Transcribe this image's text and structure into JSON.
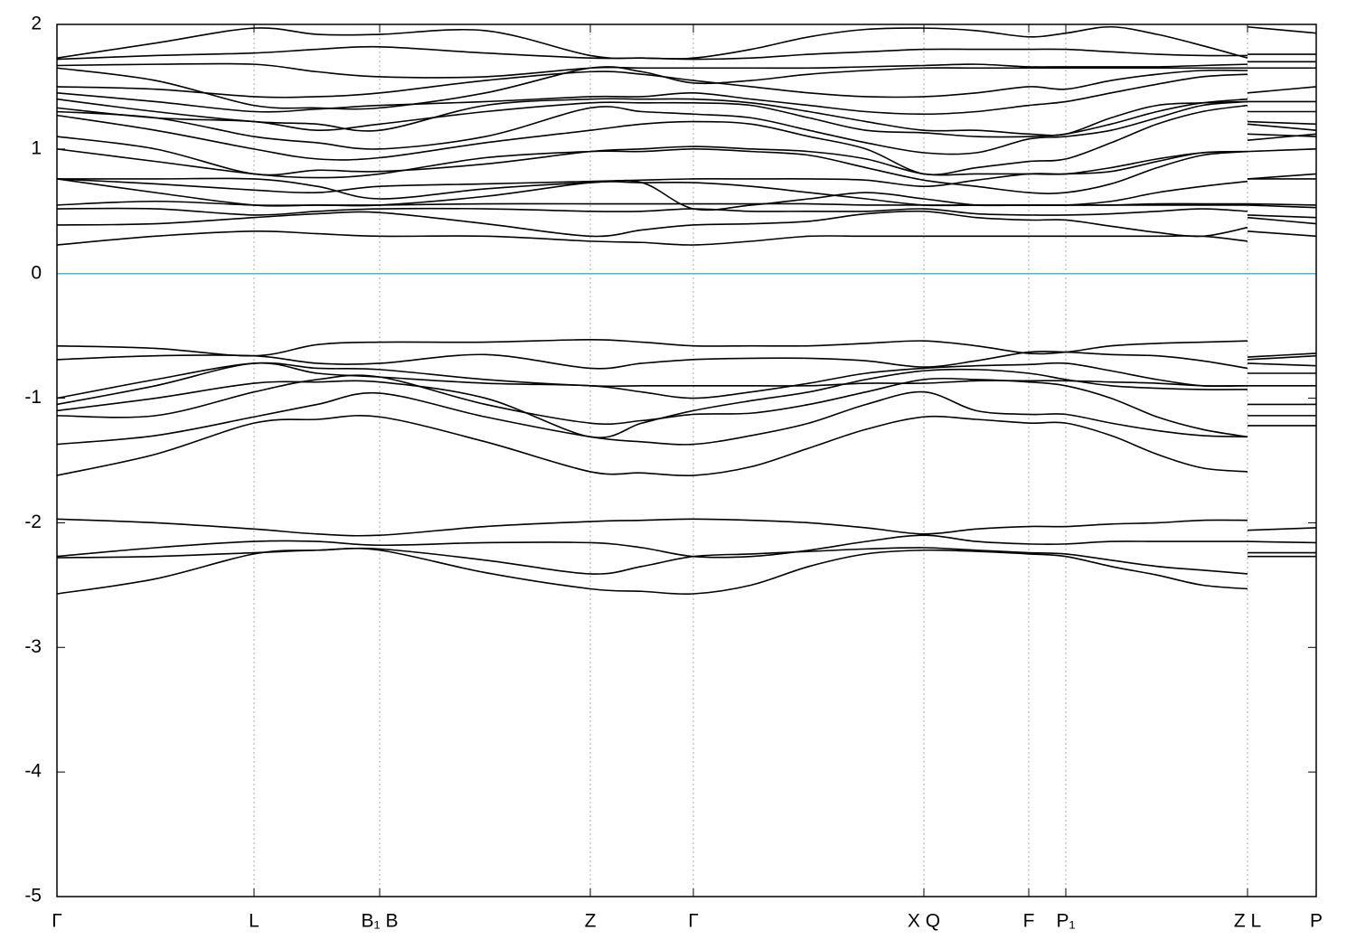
{
  "chart_data": {
    "type": "line",
    "color": "#000000",
    "zero_line_color": "#5aaec6",
    "grid": true,
    "xlim": [
      0,
      13.93
    ],
    "xticks": [
      {
        "value": 0,
        "label": "Γ"
      },
      {
        "value": 2.18,
        "label": "L"
      },
      {
        "value": 3.57,
        "label": "B₁ B"
      },
      {
        "value": 5.9,
        "label": "Z"
      },
      {
        "value": 7.04,
        "label": "Γ"
      },
      {
        "value": 9.59,
        "label": "X Q"
      },
      {
        "value": 10.75,
        "label": "F"
      },
      {
        "value": 11.16,
        "label": "P₁"
      },
      {
        "value": 13.17,
        "label": "Z L"
      },
      {
        "value": 13.93,
        "label": "P"
      }
    ],
    "ylim": [
      -5,
      2
    ],
    "yticks": [
      2,
      1,
      0,
      -1,
      -2,
      -3,
      -4,
      -5
    ],
    "x": [
      0,
      1.09,
      2.18,
      2.88,
      3.57,
      4.74,
      5.9,
      6.47,
      7.04,
      7.68,
      8.32,
      8.95,
      9.59,
      10.17,
      10.75,
      11.16,
      11.66,
      12.17,
      12.67,
      13.17,
      13.17,
      13.17,
      13.93
    ],
    "series": [
      {
        "values": [
          -2.57,
          -2.45,
          -2.25,
          -2.22,
          -2.22,
          -2.4,
          -2.53,
          -2.55,
          -2.57,
          -2.5,
          -2.35,
          -2.25,
          -2.22,
          -2.23,
          -2.25,
          -2.27,
          -2.35,
          -2.42,
          -2.5,
          -2.53,
          null,
          -2.27,
          -2.27
        ]
      },
      {
        "values": [
          -2.28,
          -2.27,
          -2.24,
          -2.22,
          -2.21,
          -2.3,
          -2.41,
          -2.35,
          -2.27,
          -2.25,
          -2.23,
          -2.21,
          -2.2,
          -2.22,
          -2.24,
          -2.25,
          -2.3,
          -2.35,
          -2.38,
          -2.41,
          null,
          -2.24,
          -2.24
        ]
      },
      {
        "values": [
          -2.27,
          -2.2,
          -2.15,
          -2.15,
          -2.18,
          -2.16,
          -2.16,
          -2.2,
          -2.27,
          -2.27,
          -2.22,
          -2.15,
          -2.1,
          -2.15,
          -2.17,
          -2.17,
          -2.15,
          -2.15,
          -2.15,
          -2.15,
          null,
          -2.15,
          -2.16
        ]
      },
      {
        "values": [
          -1.97,
          -2.0,
          -2.05,
          -2.09,
          -2.1,
          -2.03,
          -1.99,
          -1.98,
          -1.97,
          -1.98,
          -2.0,
          -2.04,
          -2.09,
          -2.05,
          -2.03,
          -2.03,
          -2.01,
          -2.0,
          -1.98,
          -1.98,
          null,
          -2.06,
          -2.04
        ]
      },
      {
        "values": [
          -1.62,
          -1.45,
          -1.2,
          -1.17,
          -1.15,
          -1.35,
          -1.59,
          -1.6,
          -1.62,
          -1.55,
          -1.4,
          -1.25,
          -1.15,
          -1.17,
          -1.2,
          -1.2,
          -1.3,
          -1.45,
          -1.56,
          -1.59,
          null,
          -1.22,
          -1.22
        ]
      },
      {
        "values": [
          -1.37,
          -1.3,
          -1.15,
          -1.05,
          -0.96,
          -1.15,
          -1.31,
          -1.35,
          -1.37,
          -1.3,
          -1.2,
          -1.05,
          -0.95,
          -1.1,
          -1.13,
          -1.13,
          -1.2,
          -1.26,
          -1.3,
          -1.31,
          null,
          -1.14,
          -1.14
        ]
      },
      {
        "values": [
          -1.14,
          -1.14,
          -0.95,
          -0.85,
          -0.83,
          -1.05,
          -1.2,
          -1.18,
          -1.13,
          -1.12,
          -1.05,
          -0.95,
          -0.85,
          -0.85,
          -0.87,
          -0.9,
          -1.0,
          -1.15,
          -1.25,
          -1.31,
          null,
          -1.05,
          -1.05
        ]
      },
      {
        "values": [
          -1.1,
          -1.0,
          -0.88,
          -0.87,
          -0.87,
          -1.0,
          -1.31,
          -1.2,
          -1.1,
          -1.02,
          -0.95,
          -0.85,
          -0.78,
          -0.77,
          -0.8,
          -0.85,
          -0.9,
          -0.92,
          -0.93,
          -0.93,
          null,
          -0.9,
          -0.9
        ]
      },
      {
        "values": [
          -1.05,
          -0.9,
          -0.72,
          -0.8,
          -0.83,
          -0.88,
          -0.9,
          -0.95,
          -1.0,
          -0.95,
          -0.88,
          -0.8,
          -0.76,
          -0.74,
          -0.73,
          -0.72,
          -0.78,
          -0.85,
          -0.9,
          -0.9,
          null,
          -0.8,
          -0.8
        ]
      },
      {
        "values": [
          -1.0,
          -0.85,
          -0.72,
          -0.76,
          -0.77,
          -0.85,
          -0.9,
          -0.9,
          -0.9,
          -0.9,
          -0.9,
          -0.88,
          -0.88,
          -0.86,
          -0.86,
          -0.86,
          -0.87,
          -0.88,
          -0.9,
          -0.9,
          null,
          -0.72,
          -0.74
        ]
      },
      {
        "values": [
          -0.69,
          -0.66,
          -0.66,
          -0.72,
          -0.72,
          -0.65,
          -0.76,
          -0.72,
          -0.69,
          -0.68,
          -0.68,
          -0.7,
          -0.75,
          -0.7,
          -0.63,
          -0.63,
          -0.65,
          -0.66,
          -0.7,
          -0.76,
          null,
          -0.69,
          -0.66
        ]
      },
      {
        "values": [
          -0.58,
          -0.6,
          -0.66,
          -0.57,
          -0.55,
          -0.55,
          -0.53,
          -0.55,
          -0.58,
          -0.58,
          -0.58,
          -0.56,
          -0.54,
          -0.58,
          -0.64,
          -0.63,
          -0.58,
          -0.56,
          -0.55,
          -0.54,
          null,
          -0.67,
          -0.64
        ]
      },
      {
        "values": [
          0.23,
          0.3,
          0.34,
          0.32,
          0.3,
          0.3,
          0.26,
          0.25,
          0.23,
          0.26,
          0.3,
          0.3,
          0.3,
          0.3,
          0.3,
          0.3,
          0.3,
          0.3,
          0.3,
          0.26,
          null,
          0.34,
          0.3
        ]
      },
      {
        "values": [
          0.39,
          0.4,
          0.45,
          0.48,
          0.49,
          0.4,
          0.3,
          0.35,
          0.39,
          0.4,
          0.42,
          0.48,
          0.5,
          0.45,
          0.43,
          0.43,
          0.38,
          0.33,
          0.3,
          0.37,
          null,
          0.45,
          0.4
        ]
      },
      {
        "values": [
          0.52,
          0.52,
          0.47,
          0.5,
          0.52,
          0.52,
          0.5,
          0.5,
          0.52,
          0.5,
          0.5,
          0.5,
          0.52,
          0.48,
          0.47,
          0.47,
          0.48,
          0.5,
          0.52,
          0.5,
          null,
          0.47,
          0.45
        ]
      },
      {
        "values": [
          0.55,
          0.58,
          0.55,
          0.55,
          0.55,
          0.56,
          0.56,
          0.56,
          0.56,
          0.56,
          0.56,
          0.55,
          0.55,
          0.55,
          0.55,
          0.55,
          0.55,
          0.55,
          0.55,
          0.55,
          null,
          0.55,
          0.53
        ]
      },
      {
        "values": [
          0.76,
          0.65,
          0.55,
          0.55,
          0.55,
          0.62,
          0.73,
          0.73,
          0.73,
          0.7,
          0.65,
          0.6,
          0.55,
          0.55,
          0.55,
          0.55,
          0.58,
          0.65,
          0.7,
          0.74,
          null,
          0.56,
          0.55
        ]
      },
      {
        "values": [
          0.76,
          0.76,
          0.76,
          0.7,
          0.6,
          0.68,
          0.73,
          0.73,
          0.52,
          0.55,
          0.6,
          0.65,
          0.6,
          0.55,
          0.55,
          0.55,
          0.55,
          0.56,
          0.56,
          0.56,
          null,
          0.76,
          0.8
        ]
      },
      {
        "values": [
          0.76,
          0.72,
          0.67,
          0.65,
          0.7,
          0.72,
          0.74,
          0.75,
          0.76,
          0.76,
          0.76,
          0.75,
          0.7,
          0.75,
          0.8,
          0.8,
          0.82,
          0.9,
          0.97,
          0.98,
          null,
          0.76,
          0.76
        ]
      },
      {
        "values": [
          1.0,
          0.9,
          0.8,
          0.77,
          0.8,
          0.93,
          0.98,
          0.98,
          1.0,
          0.98,
          0.95,
          0.85,
          0.75,
          0.7,
          0.65,
          0.65,
          0.72,
          0.85,
          0.95,
          0.98,
          null,
          0.98,
          1.0
        ]
      },
      {
        "values": [
          1.1,
          1.0,
          0.8,
          0.83,
          0.82,
          0.88,
          0.98,
          1.0,
          1.02,
          1.0,
          0.98,
          0.92,
          0.8,
          0.8,
          0.8,
          0.8,
          0.85,
          0.92,
          0.97,
          0.98,
          null,
          1.07,
          1.12
        ]
      },
      {
        "values": [
          1.27,
          1.15,
          1.0,
          0.92,
          0.93,
          1.05,
          1.15,
          1.2,
          1.22,
          1.2,
          1.1,
          1.0,
          0.8,
          0.85,
          0.9,
          0.92,
          1.05,
          1.2,
          1.3,
          1.35,
          null,
          1.12,
          1.1
        ]
      },
      {
        "values": [
          1.3,
          1.25,
          1.1,
          1.05,
          1.0,
          1.1,
          1.33,
          1.3,
          1.28,
          1.25,
          1.15,
          1.05,
          0.97,
          0.97,
          1.08,
          1.1,
          1.15,
          1.25,
          1.35,
          1.38,
          null,
          1.2,
          1.15
        ]
      },
      {
        "values": [
          1.33,
          1.25,
          1.22,
          1.15,
          1.2,
          1.3,
          1.37,
          1.37,
          1.37,
          1.35,
          1.25,
          1.15,
          1.13,
          1.1,
          1.1,
          1.12,
          1.2,
          1.3,
          1.37,
          1.4,
          null,
          1.22,
          1.2
        ]
      },
      {
        "values": [
          1.4,
          1.3,
          1.22,
          1.2,
          1.15,
          1.35,
          1.4,
          1.4,
          1.4,
          1.37,
          1.3,
          1.22,
          1.15,
          1.15,
          1.12,
          1.12,
          1.25,
          1.35,
          1.37,
          1.38,
          null,
          1.3,
          1.3
        ]
      },
      {
        "values": [
          1.45,
          1.38,
          1.3,
          1.32,
          1.35,
          1.38,
          1.42,
          1.42,
          1.45,
          1.4,
          1.35,
          1.3,
          1.28,
          1.3,
          1.35,
          1.38,
          1.45,
          1.52,
          1.58,
          1.6,
          null,
          1.38,
          1.38
        ]
      },
      {
        "values": [
          1.5,
          1.48,
          1.42,
          1.42,
          1.45,
          1.55,
          1.62,
          1.6,
          1.55,
          1.5,
          1.45,
          1.42,
          1.42,
          1.45,
          1.5,
          1.48,
          1.55,
          1.6,
          1.63,
          1.63,
          null,
          1.45,
          1.5
        ]
      },
      {
        "values": [
          1.65,
          1.55,
          1.35,
          1.33,
          1.33,
          1.45,
          1.65,
          1.62,
          1.53,
          1.55,
          1.6,
          1.63,
          1.65,
          1.65,
          1.65,
          1.65,
          1.65,
          1.65,
          1.65,
          1.65,
          null,
          1.65,
          1.65
        ]
      },
      {
        "values": [
          1.67,
          1.68,
          1.68,
          1.62,
          1.58,
          1.58,
          1.65,
          1.65,
          1.65,
          1.65,
          1.65,
          1.66,
          1.67,
          1.68,
          1.66,
          1.66,
          1.66,
          1.66,
          1.67,
          1.68,
          null,
          1.7,
          1.7
        ]
      },
      {
        "values": [
          1.72,
          1.75,
          1.77,
          1.8,
          1.82,
          1.77,
          1.73,
          1.73,
          1.72,
          1.73,
          1.76,
          1.78,
          1.8,
          1.8,
          1.8,
          1.8,
          1.78,
          1.76,
          1.75,
          1.75,
          null,
          1.76,
          1.76
        ]
      },
      {
        "values": [
          1.73,
          1.85,
          1.97,
          1.92,
          1.92,
          1.95,
          1.75,
          1.73,
          1.73,
          1.8,
          1.9,
          1.96,
          1.97,
          1.95,
          1.9,
          1.93,
          1.98,
          1.92,
          1.83,
          1.73,
          null,
          1.98,
          1.93
        ]
      }
    ]
  }
}
